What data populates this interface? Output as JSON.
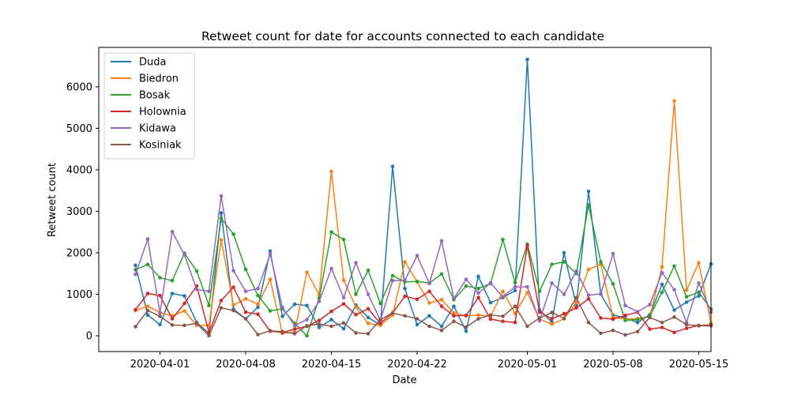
{
  "chart_data": {
    "type": "line",
    "title": "Retweet count for date for accounts connected to each candidate",
    "xlabel": "Date",
    "ylabel": "Retweet count",
    "x_start": "2020-03-30",
    "x_range": [
      "2020-03-27",
      "2020-05-16"
    ],
    "ylim": [
      -380,
      6950
    ],
    "x_ticks": [
      "2020-04-01",
      "2020-04-08",
      "2020-04-15",
      "2020-04-22",
      "2020-05-01",
      "2020-05-08",
      "2020-05-15"
    ],
    "y_ticks": [
      0,
      1000,
      2000,
      3000,
      4000,
      5000,
      6000
    ],
    "grid": false,
    "legend_position": "top-left",
    "series": [
      {
        "name": "Duda",
        "color": "#1f77b4",
        "values": [
          1700,
          500,
          270,
          1020,
          960,
          320,
          60,
          2960,
          640,
          410,
          690,
          2040,
          470,
          760,
          730,
          200,
          390,
          170,
          740,
          440,
          260,
          4080,
          1140,
          270,
          480,
          230,
          710,
          110,
          1430,
          800,
          920,
          1090,
          6660,
          620,
          330,
          2000,
          730,
          3480,
          1000,
          500,
          430,
          320,
          510,
          1240,
          620,
          810,
          960,
          1730
        ]
      },
      {
        "name": "Biedron",
        "color": "#ff7f0e",
        "values": [
          610,
          710,
          560,
          480,
          600,
          250,
          250,
          2310,
          740,
          890,
          760,
          1360,
          60,
          80,
          1530,
          990,
          3960,
          1340,
          690,
          300,
          250,
          500,
          1780,
          1300,
          790,
          870,
          550,
          480,
          500,
          470,
          1070,
          540,
          1040,
          400,
          280,
          410,
          800,
          1600,
          1720,
          450,
          400,
          410,
          460,
          1660,
          5660,
          1100,
          1760,
          300
        ]
      },
      {
        "name": "Bosak",
        "color": "#2ca02c",
        "values": [
          1590,
          1720,
          1400,
          1330,
          1990,
          1560,
          730,
          2830,
          2450,
          1600,
          970,
          600,
          650,
          300,
          0,
          910,
          2500,
          2320,
          1000,
          1580,
          780,
          1450,
          1300,
          1310,
          1270,
          1490,
          870,
          1200,
          1140,
          1260,
          2320,
          1280,
          2210,
          1070,
          1720,
          1780,
          1500,
          3150,
          1780,
          1250,
          370,
          390,
          470,
          1050,
          1680,
          940,
          1050,
          640
        ]
      },
      {
        "name": "Holownia",
        "color": "#d62728",
        "values": [
          630,
          1020,
          970,
          410,
          780,
          1200,
          80,
          850,
          1170,
          570,
          520,
          110,
          80,
          160,
          230,
          370,
          590,
          770,
          510,
          650,
          300,
          550,
          950,
          880,
          1070,
          710,
          480,
          490,
          920,
          400,
          350,
          320,
          2170,
          570,
          410,
          530,
          670,
          890,
          430,
          400,
          490,
          570,
          160,
          200,
          80,
          180,
          250,
          260
        ]
      },
      {
        "name": "Kidawa",
        "color": "#9467bd",
        "values": [
          1480,
          2330,
          550,
          2510,
          1950,
          1120,
          1070,
          3370,
          1570,
          1070,
          1140,
          1970,
          680,
          250,
          390,
          830,
          1620,
          920,
          1760,
          1000,
          370,
          1330,
          1340,
          1930,
          1260,
          2290,
          900,
          1360,
          1030,
          1270,
          940,
          1180,
          1180,
          360,
          1270,
          1000,
          1560,
          980,
          1010,
          1980,
          730,
          580,
          750,
          1520,
          1110,
          320,
          1270,
          570
        ]
      },
      {
        "name": "Kosiniak",
        "color": "#8c564b",
        "values": [
          220,
          610,
          470,
          260,
          250,
          300,
          0,
          670,
          610,
          410,
          30,
          120,
          100,
          50,
          240,
          280,
          230,
          310,
          70,
          50,
          390,
          550,
          480,
          410,
          230,
          130,
          350,
          210,
          410,
          500,
          470,
          710,
          230,
          430,
          560,
          420,
          920,
          320,
          60,
          130,
          20,
          100,
          440,
          320,
          450,
          270,
          240,
          240
        ]
      }
    ]
  }
}
